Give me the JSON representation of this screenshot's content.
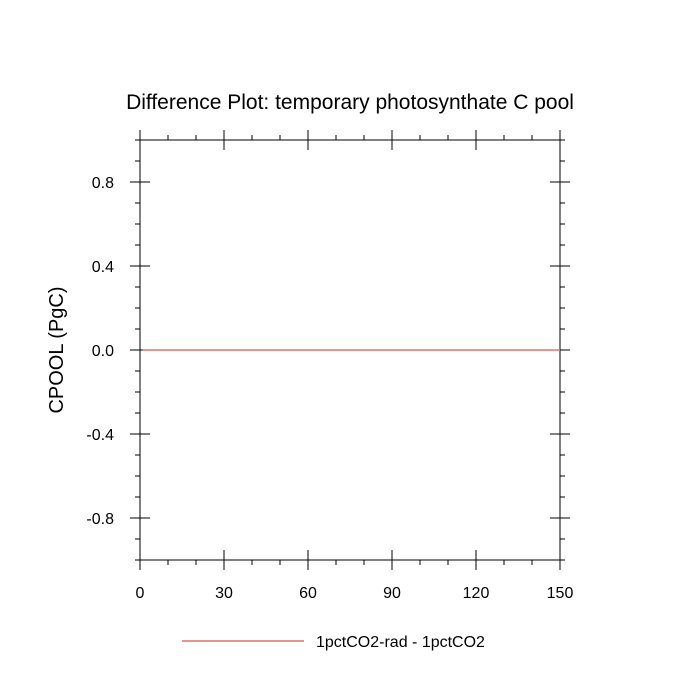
{
  "chart_data": {
    "type": "line",
    "title": "Difference Plot: temporary photosynthate C pool",
    "xlabel": "",
    "ylabel": "CPOOL  (PgC)",
    "xlim": [
      0,
      150
    ],
    "ylim": [
      -1,
      1
    ],
    "x_ticks": [
      0,
      30,
      60,
      90,
      120,
      150
    ],
    "x_tick_labels": [
      "0",
      "30",
      "60",
      "90",
      "120",
      "150"
    ],
    "y_ticks": [
      -0.8,
      -0.4,
      0.0,
      0.4,
      0.8
    ],
    "y_tick_labels": [
      "-0.8",
      "-0.4",
      "0.0",
      "0.4",
      "0.8"
    ],
    "grid": false,
    "legend_position": "bottom",
    "series": [
      {
        "name": "1pctCO2-rad - 1pctCO2",
        "color": "#e07070",
        "x": [
          1,
          150
        ],
        "y": [
          0.0,
          0.0
        ]
      }
    ]
  }
}
